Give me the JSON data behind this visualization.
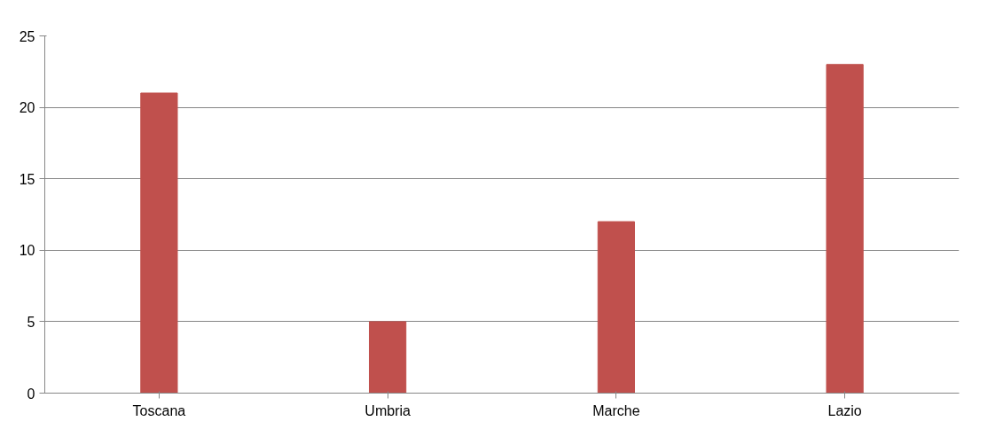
{
  "chart_data": {
    "type": "bar",
    "categories": [
      "Toscana",
      "Umbria",
      "Marche",
      "Lazio"
    ],
    "values": [
      21,
      5,
      12,
      23
    ],
    "color": "#c0504d",
    "ylim": [
      0,
      25
    ],
    "yticks": [
      0,
      5,
      10,
      15,
      20,
      25
    ],
    "grid": "y"
  }
}
